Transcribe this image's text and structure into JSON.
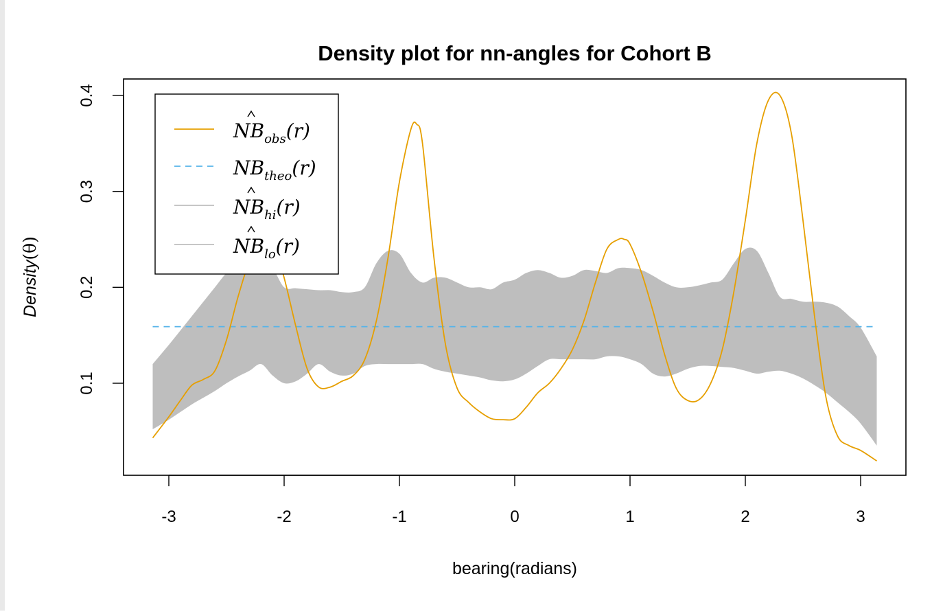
{
  "chart_data": {
    "type": "line",
    "title": "Density plot for nn-angles for Cohort B",
    "xlabel": "bearing(radians)",
    "ylabel_main": "Density",
    "ylabel_arg": "(θ)",
    "xlim": [
      -3.14,
      3.14
    ],
    "ylim": [
      0.025,
      0.42
    ],
    "xticks": [
      -3,
      -2,
      -1,
      0,
      1,
      2,
      3
    ],
    "yticks": [
      0.1,
      0.2,
      0.3,
      0.4
    ],
    "grid": false,
    "legend_position": "top-left",
    "colors": {
      "observed": "#E69F00",
      "theoretical": "#56B4E9",
      "envelope": "#BEBEBE"
    },
    "legend": [
      {
        "base": "N",
        "hat": "B",
        "sub": "obs",
        "arg": "(r)",
        "style": "solid",
        "color": "#E69F00"
      },
      {
        "base": "N",
        "hat": "",
        "rest": "B",
        "sub": "theo",
        "arg": "(r)",
        "style": "dashed",
        "color": "#56B4E9"
      },
      {
        "base": "N",
        "hat": "B",
        "sub": "hi",
        "arg": "(r)",
        "style": "solid",
        "color": "#BEBEBE"
      },
      {
        "base": "N",
        "hat": "B",
        "sub": "lo",
        "arg": "(r)",
        "style": "solid",
        "color": "#BEBEBE"
      }
    ],
    "series": [
      {
        "name": "NB_obs(r)",
        "x": [
          -3.14,
          -3.0,
          -2.9,
          -2.8,
          -2.7,
          -2.6,
          -2.5,
          -2.4,
          -2.3,
          -2.2,
          -2.1,
          -2.0,
          -1.9,
          -1.8,
          -1.7,
          -1.6,
          -1.5,
          -1.4,
          -1.3,
          -1.2,
          -1.1,
          -1.0,
          -0.9,
          -0.85,
          -0.8,
          -0.7,
          -0.6,
          -0.5,
          -0.4,
          -0.3,
          -0.2,
          -0.1,
          0.0,
          0.1,
          0.2,
          0.3,
          0.4,
          0.5,
          0.6,
          0.7,
          0.8,
          0.9,
          0.95,
          1.0,
          1.1,
          1.2,
          1.3,
          1.4,
          1.5,
          1.6,
          1.7,
          1.8,
          1.9,
          2.0,
          2.1,
          2.2,
          2.3,
          2.4,
          2.5,
          2.6,
          2.7,
          2.8,
          2.9,
          3.0,
          3.14
        ],
        "y": [
          0.043,
          0.065,
          0.082,
          0.098,
          0.104,
          0.113,
          0.145,
          0.19,
          0.228,
          0.255,
          0.25,
          0.21,
          0.16,
          0.115,
          0.096,
          0.096,
          0.102,
          0.108,
          0.125,
          0.165,
          0.23,
          0.31,
          0.365,
          0.37,
          0.35,
          0.23,
          0.14,
          0.095,
          0.08,
          0.07,
          0.063,
          0.062,
          0.063,
          0.075,
          0.09,
          0.1,
          0.115,
          0.135,
          0.165,
          0.205,
          0.24,
          0.25,
          0.25,
          0.245,
          0.215,
          0.175,
          0.13,
          0.095,
          0.082,
          0.083,
          0.1,
          0.135,
          0.195,
          0.27,
          0.35,
          0.395,
          0.4,
          0.36,
          0.27,
          0.17,
          0.085,
          0.045,
          0.035,
          0.03,
          0.019
        ]
      },
      {
        "name": "NB_theo(r)",
        "x": [
          -3.14,
          3.14
        ],
        "y": [
          0.159,
          0.159
        ]
      },
      {
        "name": "NB_hi(r)",
        "x": [
          -3.14,
          -3.0,
          -2.9,
          -2.8,
          -2.7,
          -2.6,
          -2.5,
          -2.4,
          -2.3,
          -2.2,
          -2.1,
          -2.0,
          -1.9,
          -1.8,
          -1.7,
          -1.6,
          -1.5,
          -1.4,
          -1.3,
          -1.2,
          -1.1,
          -1.0,
          -0.9,
          -0.8,
          -0.7,
          -0.6,
          -0.5,
          -0.4,
          -0.3,
          -0.2,
          -0.1,
          0.0,
          0.1,
          0.2,
          0.3,
          0.4,
          0.5,
          0.6,
          0.7,
          0.8,
          0.9,
          1.0,
          1.1,
          1.2,
          1.3,
          1.4,
          1.5,
          1.6,
          1.7,
          1.8,
          1.9,
          2.0,
          2.1,
          2.2,
          2.3,
          2.4,
          2.5,
          2.6,
          2.7,
          2.8,
          2.9,
          3.0,
          3.14
        ],
        "y": [
          0.12,
          0.14,
          0.155,
          0.17,
          0.185,
          0.2,
          0.215,
          0.225,
          0.232,
          0.23,
          0.22,
          0.2,
          0.199,
          0.198,
          0.197,
          0.197,
          0.195,
          0.195,
          0.2,
          0.225,
          0.238,
          0.235,
          0.215,
          0.205,
          0.21,
          0.21,
          0.205,
          0.2,
          0.2,
          0.198,
          0.205,
          0.208,
          0.215,
          0.218,
          0.215,
          0.21,
          0.212,
          0.218,
          0.217,
          0.215,
          0.22,
          0.22,
          0.218,
          0.212,
          0.205,
          0.2,
          0.2,
          0.202,
          0.205,
          0.208,
          0.225,
          0.24,
          0.238,
          0.215,
          0.19,
          0.188,
          0.185,
          0.185,
          0.184,
          0.18,
          0.17,
          0.158,
          0.128
        ]
      },
      {
        "name": "NB_lo(r)",
        "x": [
          -3.14,
          -3.0,
          -2.9,
          -2.8,
          -2.7,
          -2.6,
          -2.5,
          -2.4,
          -2.3,
          -2.2,
          -2.1,
          -2.0,
          -1.9,
          -1.8,
          -1.7,
          -1.6,
          -1.5,
          -1.4,
          -1.3,
          -1.2,
          -1.1,
          -1.0,
          -0.9,
          -0.8,
          -0.7,
          -0.6,
          -0.5,
          -0.4,
          -0.3,
          -0.2,
          -0.1,
          0.0,
          0.1,
          0.2,
          0.3,
          0.4,
          0.5,
          0.6,
          0.7,
          0.8,
          0.9,
          1.0,
          1.1,
          1.2,
          1.3,
          1.4,
          1.5,
          1.6,
          1.7,
          1.8,
          1.9,
          2.0,
          2.1,
          2.2,
          2.3,
          2.4,
          2.5,
          2.6,
          2.7,
          2.8,
          2.9,
          3.0,
          3.14
        ],
        "y": [
          0.052,
          0.062,
          0.07,
          0.078,
          0.085,
          0.092,
          0.1,
          0.107,
          0.113,
          0.12,
          0.108,
          0.1,
          0.102,
          0.11,
          0.12,
          0.112,
          0.108,
          0.11,
          0.118,
          0.12,
          0.12,
          0.12,
          0.12,
          0.12,
          0.115,
          0.112,
          0.11,
          0.108,
          0.106,
          0.103,
          0.102,
          0.104,
          0.11,
          0.118,
          0.125,
          0.125,
          0.125,
          0.125,
          0.125,
          0.128,
          0.128,
          0.125,
          0.12,
          0.11,
          0.107,
          0.11,
          0.115,
          0.118,
          0.118,
          0.117,
          0.116,
          0.113,
          0.11,
          0.112,
          0.113,
          0.11,
          0.105,
          0.098,
          0.09,
          0.08,
          0.07,
          0.058,
          0.035
        ]
      }
    ]
  }
}
